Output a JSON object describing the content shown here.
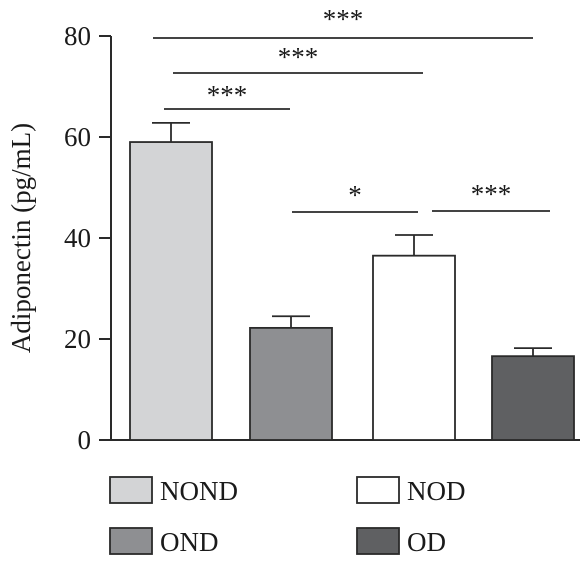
{
  "chart_data": {
    "type": "bar",
    "title": "",
    "xlabel": "",
    "ylabel": "Adiponectin (pg/mL)",
    "ylim": [
      0,
      80
    ],
    "yticks": [
      0,
      20,
      40,
      60,
      80
    ],
    "categories": [
      "NOND",
      "OND",
      "NOD",
      "OD"
    ],
    "values": [
      59,
      22.2,
      36.5,
      16.6
    ],
    "errors": [
      3.8,
      2.3,
      4.1,
      1.6
    ],
    "colors": [
      "#d3d4d6",
      "#8e8f92",
      "#ffffff",
      "#5f6062"
    ],
    "grid": false,
    "legend": {
      "placement": "bottom",
      "entries": [
        {
          "label": "NOND",
          "color": "#d3d4d6"
        },
        {
          "label": "NOD",
          "color": "#ffffff"
        },
        {
          "label": "OND",
          "color": "#8e8f92"
        },
        {
          "label": "OD",
          "color": "#5f6062"
        }
      ]
    },
    "significance": [
      {
        "from": "NOND",
        "to": "OD",
        "label": "***"
      },
      {
        "from": "NOND",
        "to": "NOD",
        "label": "***"
      },
      {
        "from": "NOND",
        "to": "OND",
        "label": "***"
      },
      {
        "from": "OND",
        "to": "NOD",
        "label": "*"
      },
      {
        "from": "NOD",
        "to": "OD",
        "label": "***"
      }
    ]
  }
}
